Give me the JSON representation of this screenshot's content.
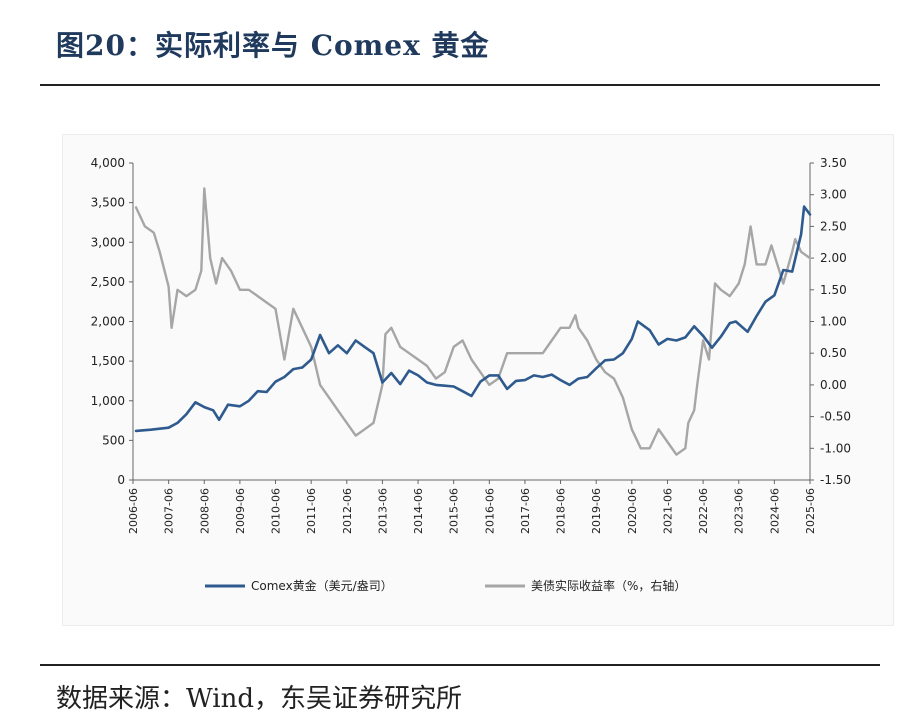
{
  "header": {
    "title": "图20：实际利率与 Comex 黄金"
  },
  "footer": {
    "source": "数据来源：Wind，东吴证券研究所"
  },
  "chart_data": {
    "type": "line",
    "title": "",
    "x_ticks": [
      "2006-06",
      "2007-06",
      "2008-06",
      "2009-06",
      "2010-06",
      "2011-06",
      "2012-06",
      "2013-06",
      "2014-06",
      "2015-06",
      "2016-06",
      "2017-06",
      "2018-06",
      "2019-06",
      "2020-06",
      "2021-06",
      "2022-06",
      "2023-06",
      "2024-06",
      "2025-06"
    ],
    "xlim": [
      "2006-06",
      "2025-06"
    ],
    "y_left": {
      "ylim": [
        0,
        4000
      ],
      "ticks": [
        0,
        500,
        1000,
        1500,
        2000,
        2500,
        3000,
        3500,
        4000
      ],
      "tick_labels": [
        "0",
        "500",
        "1,000",
        "1,500",
        "2,000",
        "2,500",
        "3,000",
        "3,500",
        "4,000"
      ]
    },
    "y_right": {
      "ylim": [
        -1.5,
        3.5
      ],
      "ticks": [
        -1.5,
        -1.0,
        -0.5,
        0.0,
        0.5,
        1.0,
        1.5,
        2.0,
        2.5,
        3.0,
        3.5
      ],
      "tick_labels": [
        "-1.50",
        "-1.00",
        "-0.50",
        "0.00",
        "0.50",
        "1.00",
        "1.50",
        "2.00",
        "2.50",
        "3.00",
        "3.50"
      ]
    },
    "grid": false,
    "legend_position": "bottom",
    "series": [
      {
        "name": "Comex黄金（美元/盎司）",
        "axis": "left",
        "color": "#2e5a8e",
        "points": [
          [
            "2006-07",
            620
          ],
          [
            "2006-12",
            635
          ],
          [
            "2007-06",
            660
          ],
          [
            "2007-09",
            720
          ],
          [
            "2007-12",
            830
          ],
          [
            "2008-03",
            980
          ],
          [
            "2008-06",
            920
          ],
          [
            "2008-09",
            880
          ],
          [
            "2008-11",
            760
          ],
          [
            "2009-02",
            950
          ],
          [
            "2009-06",
            930
          ],
          [
            "2009-09",
            1000
          ],
          [
            "2009-12",
            1120
          ],
          [
            "2010-03",
            1110
          ],
          [
            "2010-06",
            1240
          ],
          [
            "2010-09",
            1300
          ],
          [
            "2010-12",
            1400
          ],
          [
            "2011-03",
            1420
          ],
          [
            "2011-06",
            1520
          ],
          [
            "2011-09",
            1830
          ],
          [
            "2011-12",
            1600
          ],
          [
            "2012-03",
            1700
          ],
          [
            "2012-06",
            1600
          ],
          [
            "2012-09",
            1760
          ],
          [
            "2012-12",
            1680
          ],
          [
            "2013-03",
            1600
          ],
          [
            "2013-06",
            1230
          ],
          [
            "2013-09",
            1350
          ],
          [
            "2013-12",
            1210
          ],
          [
            "2014-03",
            1380
          ],
          [
            "2014-06",
            1320
          ],
          [
            "2014-09",
            1230
          ],
          [
            "2014-12",
            1200
          ],
          [
            "2015-03",
            1190
          ],
          [
            "2015-06",
            1180
          ],
          [
            "2015-09",
            1120
          ],
          [
            "2015-12",
            1060
          ],
          [
            "2016-03",
            1240
          ],
          [
            "2016-06",
            1320
          ],
          [
            "2016-09",
            1320
          ],
          [
            "2016-12",
            1150
          ],
          [
            "2017-03",
            1250
          ],
          [
            "2017-06",
            1260
          ],
          [
            "2017-09",
            1320
          ],
          [
            "2017-12",
            1300
          ],
          [
            "2018-03",
            1330
          ],
          [
            "2018-06",
            1260
          ],
          [
            "2018-09",
            1200
          ],
          [
            "2018-12",
            1280
          ],
          [
            "2019-03",
            1300
          ],
          [
            "2019-06",
            1410
          ],
          [
            "2019-09",
            1510
          ],
          [
            "2019-12",
            1520
          ],
          [
            "2020-03",
            1600
          ],
          [
            "2020-06",
            1780
          ],
          [
            "2020-08",
            2000
          ],
          [
            "2020-12",
            1890
          ],
          [
            "2021-03",
            1710
          ],
          [
            "2021-06",
            1780
          ],
          [
            "2021-09",
            1760
          ],
          [
            "2021-12",
            1800
          ],
          [
            "2022-03",
            1940
          ],
          [
            "2022-06",
            1820
          ],
          [
            "2022-09",
            1670
          ],
          [
            "2022-12",
            1810
          ],
          [
            "2023-03",
            1980
          ],
          [
            "2023-05",
            2000
          ],
          [
            "2023-09",
            1870
          ],
          [
            "2023-12",
            2070
          ],
          [
            "2024-03",
            2250
          ],
          [
            "2024-06",
            2330
          ],
          [
            "2024-09",
            2650
          ],
          [
            "2024-12",
            2630
          ],
          [
            "2025-03",
            3100
          ],
          [
            "2025-04",
            3450
          ],
          [
            "2025-06",
            3350
          ]
        ]
      },
      {
        "name": "美债实际收益率（%，右轴）",
        "axis": "right",
        "color": "#a6a6a6",
        "points": [
          [
            "2006-07",
            2.8
          ],
          [
            "2006-10",
            2.5
          ],
          [
            "2007-01",
            2.4
          ],
          [
            "2007-03",
            2.1
          ],
          [
            "2007-06",
            1.55
          ],
          [
            "2007-07",
            0.9
          ],
          [
            "2007-09",
            1.5
          ],
          [
            "2007-12",
            1.4
          ],
          [
            "2008-03",
            1.5
          ],
          [
            "2008-05",
            1.8
          ],
          [
            "2008-06",
            3.1
          ],
          [
            "2008-08",
            2.0
          ],
          [
            "2008-10",
            1.6
          ],
          [
            "2008-12",
            2.0
          ],
          [
            "2009-03",
            1.8
          ],
          [
            "2009-06",
            1.5
          ],
          [
            "2009-09",
            1.5
          ],
          [
            "2009-12",
            1.4
          ],
          [
            "2010-03",
            1.3
          ],
          [
            "2010-06",
            1.2
          ],
          [
            "2010-09",
            0.4
          ],
          [
            "2010-12",
            1.2
          ],
          [
            "2011-03",
            0.9
          ],
          [
            "2011-06",
            0.6
          ],
          [
            "2011-09",
            0.0
          ],
          [
            "2011-12",
            -0.2
          ],
          [
            "2012-03",
            -0.4
          ],
          [
            "2012-06",
            -0.6
          ],
          [
            "2012-09",
            -0.8
          ],
          [
            "2012-12",
            -0.7
          ],
          [
            "2013-03",
            -0.6
          ],
          [
            "2013-06",
            0.0
          ],
          [
            "2013-07",
            0.8
          ],
          [
            "2013-09",
            0.9
          ],
          [
            "2013-12",
            0.6
          ],
          [
            "2014-03",
            0.5
          ],
          [
            "2014-06",
            0.4
          ],
          [
            "2014-09",
            0.3
          ],
          [
            "2014-12",
            0.1
          ],
          [
            "2015-03",
            0.2
          ],
          [
            "2015-06",
            0.6
          ],
          [
            "2015-09",
            0.7
          ],
          [
            "2015-12",
            0.4
          ],
          [
            "2016-03",
            0.2
          ],
          [
            "2016-06",
            0.0
          ],
          [
            "2016-09",
            0.1
          ],
          [
            "2016-12",
            0.5
          ],
          [
            "2017-03",
            0.5
          ],
          [
            "2017-06",
            0.5
          ],
          [
            "2017-09",
            0.5
          ],
          [
            "2017-12",
            0.5
          ],
          [
            "2018-03",
            0.7
          ],
          [
            "2018-06",
            0.9
          ],
          [
            "2018-09",
            0.9
          ],
          [
            "2018-11",
            1.1
          ],
          [
            "2018-12",
            0.9
          ],
          [
            "2019-03",
            0.7
          ],
          [
            "2019-06",
            0.4
          ],
          [
            "2019-09",
            0.2
          ],
          [
            "2019-12",
            0.1
          ],
          [
            "2020-03",
            -0.2
          ],
          [
            "2020-06",
            -0.7
          ],
          [
            "2020-09",
            -1.0
          ],
          [
            "2020-12",
            -1.0
          ],
          [
            "2021-03",
            -0.7
          ],
          [
            "2021-06",
            -0.9
          ],
          [
            "2021-09",
            -1.1
          ],
          [
            "2021-12",
            -1.0
          ],
          [
            "2022-01",
            -0.6
          ],
          [
            "2022-03",
            -0.4
          ],
          [
            "2022-04",
            0.0
          ],
          [
            "2022-06",
            0.7
          ],
          [
            "2022-08",
            0.4
          ],
          [
            "2022-10",
            1.6
          ],
          [
            "2022-12",
            1.5
          ],
          [
            "2023-03",
            1.4
          ],
          [
            "2023-06",
            1.6
          ],
          [
            "2023-08",
            1.9
          ],
          [
            "2023-10",
            2.5
          ],
          [
            "2023-12",
            1.9
          ],
          [
            "2024-03",
            1.9
          ],
          [
            "2024-05",
            2.2
          ],
          [
            "2024-09",
            1.6
          ],
          [
            "2024-12",
            2.1
          ],
          [
            "2025-01",
            2.3
          ],
          [
            "2025-03",
            2.1
          ],
          [
            "2025-06",
            2.0
          ]
        ]
      }
    ]
  }
}
